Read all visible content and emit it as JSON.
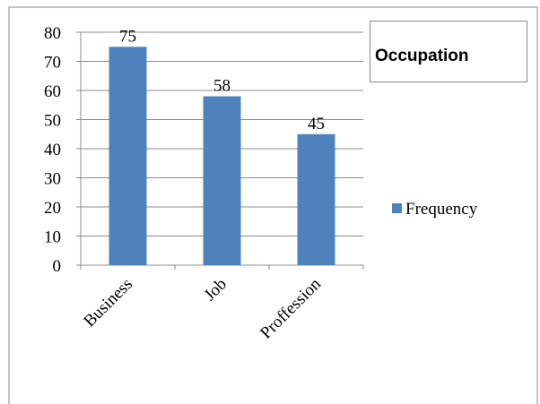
{
  "chart_data": {
    "type": "bar",
    "title": "Occupation",
    "categories": [
      "Business",
      "Job",
      "Proffession"
    ],
    "series": [
      {
        "name": "Frequency",
        "color": "#4f81bd",
        "values": [
          75,
          58,
          45
        ]
      }
    ],
    "ylim": [
      0,
      80
    ],
    "yticks": [
      0,
      10,
      20,
      30,
      40,
      50,
      60,
      70,
      80
    ],
    "grid": true,
    "legend": "right"
  }
}
